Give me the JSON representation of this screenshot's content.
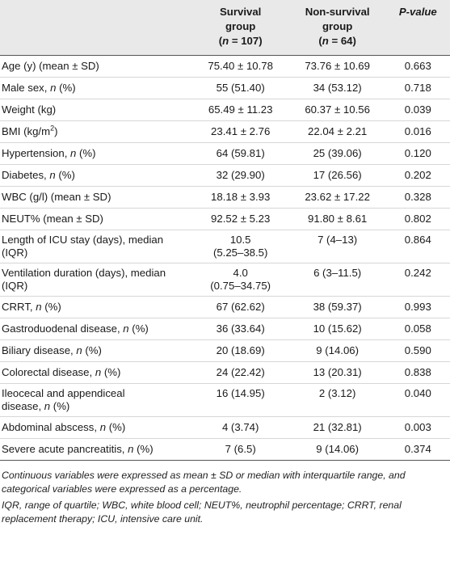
{
  "header": {
    "col1_line1": "Survival",
    "col1_line2": "group",
    "col1_n": "107",
    "col2_line1": "Non-survival",
    "col2_line2": "group",
    "col2_n": "64",
    "col3": "P-value"
  },
  "rows": [
    {
      "label": "Age (y) (mean ± SD)",
      "surv": "75.40 ± 10.78",
      "nonsurv": "73.76 ± 10.69",
      "p": "0.663"
    },
    {
      "label_pre": "Male sex, ",
      "label_it": "n",
      "label_post": " (%)",
      "surv": "55 (51.40)",
      "nonsurv": "34 (53.12)",
      "p": "0.718"
    },
    {
      "label": "Weight (kg)",
      "surv": "65.49 ± 11.23",
      "nonsurv": "60.37 ± 10.56",
      "p": "0.039"
    },
    {
      "label_pre": "BMI (kg/m",
      "label_sup": "2",
      "label_post": ")",
      "surv": "23.41 ± 2.76",
      "nonsurv": "22.04 ± 2.21",
      "p": "0.016"
    },
    {
      "label_pre": "Hypertension, ",
      "label_it": "n",
      "label_post": " (%)",
      "surv": "64 (59.81)",
      "nonsurv": "25 (39.06)",
      "p": "0.120"
    },
    {
      "label_pre": "Diabetes, ",
      "label_it": "n",
      "label_post": " (%)",
      "surv": "32 (29.90)",
      "nonsurv": "17 (26.56)",
      "p": "0.202"
    },
    {
      "label": "WBC (g/l) (mean ± SD)",
      "surv": "18.18 ± 3.93",
      "nonsurv": "23.62 ± 17.22",
      "p": "0.328"
    },
    {
      "label": "NEUT% (mean ± SD)",
      "surv": "92.52 ± 5.23",
      "nonsurv": "91.80 ± 8.61",
      "p": "0.802"
    },
    {
      "label_l1": "Length of ICU stay (days), median",
      "label_l2": "(IQR)",
      "surv_l1": "10.5",
      "surv_l2": "(5.25–38.5)",
      "nonsurv": "7 (4–13)",
      "p": "0.864"
    },
    {
      "label_l1": "Ventilation duration (days), median",
      "label_l2": "(IQR)",
      "surv_l1": "4.0",
      "surv_l2": "(0.75–34.75)",
      "nonsurv": "6 (3–11.5)",
      "p": "0.242"
    },
    {
      "label_pre": "CRRT, ",
      "label_it": "n",
      "label_post": " (%)",
      "surv": "67 (62.62)",
      "nonsurv": "38 (59.37)",
      "p": "0.993"
    },
    {
      "label_pre": "Gastroduodenal disease, ",
      "label_it": "n",
      "label_post": " (%)",
      "surv": "36 (33.64)",
      "nonsurv": "10 (15.62)",
      "p": "0.058"
    },
    {
      "label_pre": "Biliary disease, ",
      "label_it": "n",
      "label_post": " (%)",
      "surv": "20 (18.69)",
      "nonsurv": "9 (14.06)",
      "p": "0.590"
    },
    {
      "label_pre": "Colorectal disease, ",
      "label_it": "n",
      "label_post": " (%)",
      "surv": "24 (22.42)",
      "nonsurv": "13 (20.31)",
      "p": "0.838"
    },
    {
      "label_l1": "Ileocecal and appendiceal",
      "label_l2_pre": "disease, ",
      "label_l2_it": "n",
      "label_l2_post": " (%)",
      "surv": "16 (14.95)",
      "nonsurv": "2 (3.12)",
      "p": "0.040"
    },
    {
      "label_pre": "Abdominal abscess, ",
      "label_it": "n",
      "label_post": " (%)",
      "surv": "4 (3.74)",
      "nonsurv": "21 (32.81)",
      "p": "0.003"
    },
    {
      "label_pre": "Severe acute pancreatitis, ",
      "label_it": "n",
      "label_post": " (%)",
      "surv": "7 (6.5)",
      "nonsurv": "9 (14.06)",
      "p": "0.374"
    }
  ],
  "footnotes": {
    "note1": "Continuous variables were expressed as mean ± SD or median with interquartile range, and categorical variables were expressed as a percentage.",
    "note2": "IQR, range of quartile; WBC, white blood cell; NEUT%, neutrophil percentage; CRRT, renal replacement therapy; ICU, intensive care unit."
  }
}
